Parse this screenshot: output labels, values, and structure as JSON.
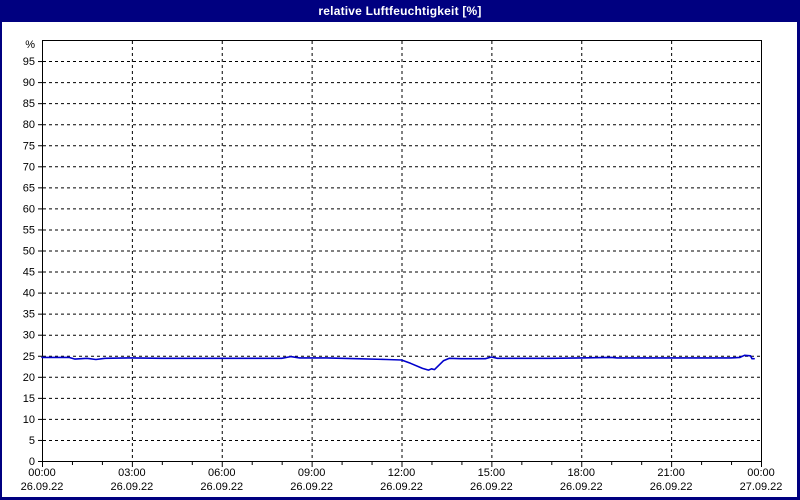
{
  "window": {
    "title": "relative Luftfeuchtigkeit [%]",
    "frame_color": "#000080",
    "titlebar_text_color": "#ffffff",
    "content_background": "#ffffff"
  },
  "chart_data": {
    "type": "line",
    "title": "relative Luftfeuchtigkeit [%]",
    "ylabel": "%",
    "xlabel": "",
    "ylim": [
      0,
      100
    ],
    "y_tick_min": 0,
    "y_tick_max": 95,
    "y_tick_step": 5,
    "x_hours_span": 24,
    "x_minor_tick_hours": 1,
    "grid": "dashed",
    "grid_color": "#000000",
    "axis_color": "#000000",
    "line_color": "#0000cc",
    "legend": "none",
    "x_major_ticks": [
      {
        "hour": 0,
        "time": "00:00",
        "date": "26.09.22"
      },
      {
        "hour": 3,
        "time": "03:00",
        "date": "26.09.22"
      },
      {
        "hour": 6,
        "time": "06:00",
        "date": "26.09.22"
      },
      {
        "hour": 9,
        "time": "09:00",
        "date": "26.09.22"
      },
      {
        "hour": 12,
        "time": "12:00",
        "date": "26.09.22"
      },
      {
        "hour": 15,
        "time": "15:00",
        "date": "26.09.22"
      },
      {
        "hour": 18,
        "time": "18:00",
        "date": "26.09.22"
      },
      {
        "hour": 21,
        "time": "21:00",
        "date": "26.09.22"
      },
      {
        "hour": 24,
        "time": "00:00",
        "date": "27.09.22"
      }
    ],
    "series": [
      {
        "name": "relative Luftfeuchtigkeit",
        "points": [
          [
            0,
            24.6
          ],
          [
            0.9,
            24.6
          ],
          [
            1.1,
            24.2
          ],
          [
            1.5,
            24.4
          ],
          [
            1.8,
            24.1
          ],
          [
            2.1,
            24.4
          ],
          [
            3,
            24.5
          ],
          [
            4,
            24.4
          ],
          [
            5,
            24.4
          ],
          [
            6,
            24.4
          ],
          [
            7,
            24.4
          ],
          [
            8,
            24.4
          ],
          [
            8.3,
            24.8
          ],
          [
            8.6,
            24.5
          ],
          [
            9.5,
            24.5
          ],
          [
            10.5,
            24.3
          ],
          [
            11.5,
            24.1
          ],
          [
            12,
            24.0
          ],
          [
            12.3,
            23.2
          ],
          [
            12.7,
            22.0
          ],
          [
            12.9,
            21.6
          ],
          [
            13.0,
            21.9
          ],
          [
            13.1,
            21.7
          ],
          [
            13.4,
            23.8
          ],
          [
            13.6,
            24.4
          ],
          [
            14,
            24.3
          ],
          [
            14.8,
            24.3
          ],
          [
            15,
            24.7
          ],
          [
            15.2,
            24.4
          ],
          [
            16,
            24.4
          ],
          [
            17,
            24.4
          ],
          [
            18,
            24.5
          ],
          [
            19,
            24.6
          ],
          [
            19.2,
            24.5
          ],
          [
            20,
            24.5
          ],
          [
            21,
            24.5
          ],
          [
            22,
            24.5
          ],
          [
            23,
            24.5
          ],
          [
            23.3,
            24.6
          ],
          [
            23.45,
            25.1
          ],
          [
            23.65,
            25.0
          ],
          [
            23.7,
            24.3
          ],
          [
            23.77,
            24.3
          ]
        ]
      }
    ]
  }
}
